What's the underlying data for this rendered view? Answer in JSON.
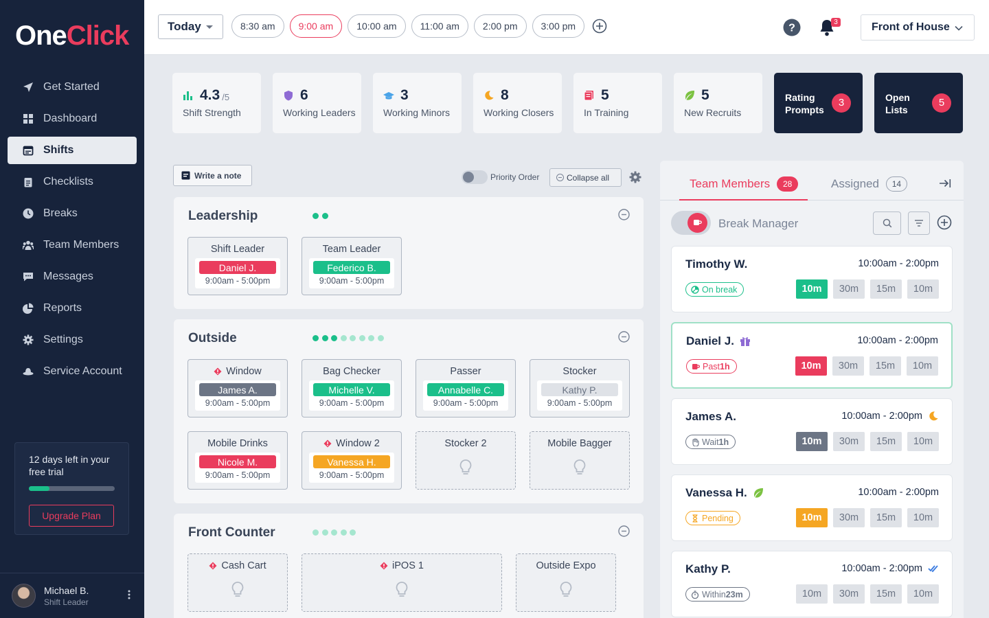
{
  "app": {
    "logo_one": "One",
    "logo_click": "Click"
  },
  "sidebar": {
    "items": [
      {
        "label": "Get Started",
        "icon": "send-icon"
      },
      {
        "label": "Dashboard",
        "icon": "grid-icon"
      },
      {
        "label": "Shifts",
        "icon": "calendar-icon",
        "active": true
      },
      {
        "label": "Checklists",
        "icon": "clipboard-icon"
      },
      {
        "label": "Breaks",
        "icon": "clock-icon"
      },
      {
        "label": "Team Members",
        "icon": "users-icon"
      },
      {
        "label": "Messages",
        "icon": "chat-icon"
      },
      {
        "label": "Reports",
        "icon": "pie-chart-icon"
      },
      {
        "label": "Settings",
        "icon": "gear-icon"
      },
      {
        "label": "Service Account",
        "icon": "hat-icon"
      }
    ],
    "trial": {
      "text": "12 days left in your free trial",
      "progress": 0.24,
      "button": "Upgrade Plan"
    },
    "user": {
      "name": "Michael B.",
      "role": "Shift Leader"
    }
  },
  "topbar": {
    "day": "Today",
    "times": [
      "8:30 am",
      "9:00 am",
      "10:00 am",
      "11:00 am",
      "2:00 pm",
      "3:00 pm"
    ],
    "active_time": "9:00 am",
    "notifications": "3",
    "location": "Front of House"
  },
  "stats": [
    {
      "value": "4.3",
      "suffix": "/5",
      "label": "Shift Strength",
      "icon": "bar-chart-icon"
    },
    {
      "value": "6",
      "label": "Working Leaders",
      "icon": "shield-icon"
    },
    {
      "value": "3",
      "label": "Working Minors",
      "icon": "graduation-cap-icon"
    },
    {
      "value": "8",
      "label": "Working Closers",
      "icon": "moon-icon"
    },
    {
      "value": "5",
      "label": "In Training",
      "icon": "book-icon"
    },
    {
      "value": "5",
      "label": "New Recruits",
      "icon": "leaf-icon"
    }
  ],
  "prompts": [
    {
      "label": "Rating Prompts",
      "count": "3"
    },
    {
      "label": "Open Lists",
      "count": "5"
    }
  ],
  "toolbar": {
    "note": "Write a note",
    "priority": "Priority Order",
    "collapse": "Collapse all"
  },
  "sections": [
    {
      "title": "Leadership",
      "dots_filled": 2,
      "dots_total": 2,
      "cards": [
        {
          "title": "Shift Leader",
          "name": "Daniel J.",
          "time": "9:00am - 5:00pm",
          "color": "#ea3c5d",
          "warn": false
        },
        {
          "title": "Team Leader",
          "name": "Federico B.",
          "time": "9:00am - 5:00pm",
          "color": "#1bbf8a",
          "warn": false
        }
      ]
    },
    {
      "title": "Outside",
      "dots_filled": 3,
      "dots_total": 8,
      "cards": [
        {
          "title": "Window",
          "name": "James A.",
          "time": "9:00am - 5:00pm",
          "color": "#6c7585",
          "warn": true
        },
        {
          "title": "Bag Checker",
          "name": "Michelle V.",
          "time": "9:00am - 5:00pm",
          "color": "#1bbf8a",
          "warn": false
        },
        {
          "title": "Passer",
          "name": "Annabelle C.",
          "time": "9:00am - 5:00pm",
          "color": "#1bbf8a",
          "warn": false
        },
        {
          "title": "Stocker",
          "name": "Kathy P.",
          "time": "9:00am - 5:00pm",
          "color": "#dfe2e7",
          "text_color": "#6c7585",
          "warn": false
        },
        {
          "title": "Mobile Drinks",
          "name": "Nicole M.",
          "time": "9:00am - 5:00pm",
          "color": "#ea3c5d",
          "warn": false
        },
        {
          "title": "Window 2",
          "name": "Vanessa H.",
          "time": "9:00am - 5:00pm",
          "color": "#f5a623",
          "warn": true
        },
        {
          "title": "Stocker 2",
          "empty": true,
          "warn": false
        },
        {
          "title": "Mobile Bagger",
          "empty": true,
          "warn": false
        }
      ]
    },
    {
      "title": "Front Counter",
      "dots_filled": 0,
      "dots_total": 5,
      "cards": [
        {
          "title": "Cash Cart",
          "empty": true,
          "warn": true
        },
        {
          "title": "iPOS 1",
          "empty": true,
          "warn": true
        },
        {
          "title": "Outside Expo",
          "empty": true,
          "warn": false
        }
      ]
    }
  ],
  "panel": {
    "tab_team": "Team Members",
    "team_count": "28",
    "tab_assigned": "Assigned",
    "assigned_count": "14",
    "break_manager": "Break Manager",
    "members": [
      {
        "name": "Timothy W.",
        "time": "10:00am - 2:00pm",
        "status": "On break",
        "status_strong": "",
        "status_color": "#1bbf8a",
        "status_icon": "pie-icon",
        "active_color": "#1bbf8a",
        "breaks": [
          "10m",
          "30m",
          "15m",
          "10m"
        ],
        "name_icon": "",
        "time_icon": ""
      },
      {
        "name": "Daniel J.",
        "time": "10:00am - 2:00pm",
        "status": "Past ",
        "status_strong": "1h",
        "status_color": "#ea3c5d",
        "status_icon": "coffee-icon",
        "active_color": "#ea3c5d",
        "breaks": [
          "10m",
          "30m",
          "15m",
          "10m"
        ],
        "name_icon": "gift-icon",
        "time_icon": "",
        "highlight": true
      },
      {
        "name": "James A.",
        "time": "10:00am - 2:00pm",
        "status": "Wait ",
        "status_strong": "1h",
        "status_color": "#6c7585",
        "status_icon": "hand-icon",
        "active_color": "#6c7585",
        "breaks": [
          "10m",
          "30m",
          "15m",
          "10m"
        ],
        "name_icon": "",
        "time_icon": "moon-icon"
      },
      {
        "name": "Vanessa H.",
        "time": "10:00am - 2:00pm",
        "status": "Pending",
        "status_strong": "",
        "status_color": "#f5a623",
        "status_icon": "hourglass-icon",
        "active_color": "#f5a623",
        "breaks": [
          "10m",
          "30m",
          "15m",
          "10m"
        ],
        "name_icon": "leaf-icon",
        "time_icon": ""
      },
      {
        "name": "Kathy P.",
        "time": "10:00am - 2:00pm",
        "status": "Within ",
        "status_strong": "23m",
        "status_color": "#6c7585",
        "status_icon": "stopwatch-icon",
        "active_color": "",
        "breaks": [
          "10m",
          "30m",
          "15m",
          "10m"
        ],
        "name_icon": "",
        "time_icon": "double-check-icon"
      }
    ]
  }
}
